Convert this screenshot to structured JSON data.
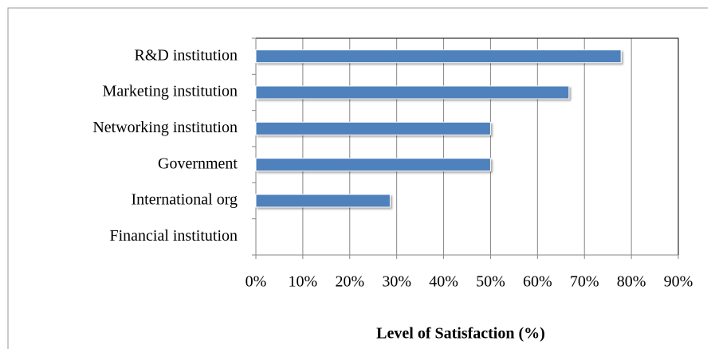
{
  "chart_data": {
    "type": "bar",
    "orientation": "horizontal",
    "x_label": "Level of Satisfaction (%)",
    "categories": [
      "R&D institution",
      "Marketing institution",
      "Networking institution",
      "Government",
      "International org",
      "Financial institution"
    ],
    "values": [
      77.8,
      66.7,
      50,
      50,
      28.6,
      0
    ],
    "color": "#4f81bd",
    "xlim": [
      0,
      90
    ],
    "xticks": [
      {
        "value": 0,
        "label": "0%"
      },
      {
        "value": 10,
        "label": "10%"
      },
      {
        "value": 20,
        "label": "20%"
      },
      {
        "value": 30,
        "label": "30%"
      },
      {
        "value": 40,
        "label": "40%"
      },
      {
        "value": 50,
        "label": "50%"
      },
      {
        "value": 60,
        "label": "60%"
      },
      {
        "value": 70,
        "label": "70%"
      },
      {
        "value": 80,
        "label": "80%"
      },
      {
        "value": 90,
        "label": "90%"
      }
    ],
    "grid": true
  }
}
